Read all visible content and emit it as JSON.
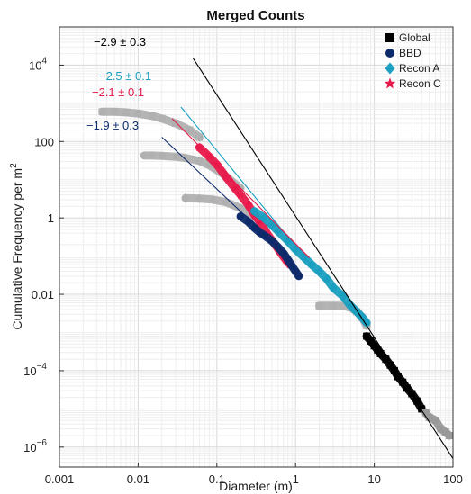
{
  "chart_data": {
    "type": "scatter",
    "title": "Merged Counts",
    "xlabel": "Diameter (m)",
    "ylabel": "Cumulative Frequency per m",
    "ylabel_sup": "2",
    "xscale": "log",
    "yscale": "log",
    "xlim": [
      0.001,
      100
    ],
    "ylim": [
      3e-07,
      100000
    ],
    "grid": true,
    "legend_position": "top-right",
    "x_ticks": [
      {
        "value": 0.001,
        "label": "0.001"
      },
      {
        "value": 0.01,
        "label": "0.01"
      },
      {
        "value": 0.1,
        "label": "0.1"
      },
      {
        "value": 1,
        "label": "1"
      },
      {
        "value": 10,
        "label": "10"
      },
      {
        "value": 100,
        "label": "100"
      }
    ],
    "y_ticks": [
      {
        "value": 1e-06,
        "base": "10",
        "exp": "−6"
      },
      {
        "value": 0.0001,
        "base": "10",
        "exp": "−4"
      },
      {
        "value": 0.01,
        "base": "0.01",
        "exp": ""
      },
      {
        "value": 1,
        "base": "1",
        "exp": ""
      },
      {
        "value": 100,
        "base": "100",
        "exp": ""
      },
      {
        "value": 10000,
        "base": "10",
        "exp": "4"
      }
    ],
    "legend": [
      {
        "name": "Global",
        "marker": "square",
        "color": "#000000"
      },
      {
        "name": "BBD",
        "marker": "circle",
        "color": "#0d2a6b"
      },
      {
        "name": "Recon A",
        "marker": "diamond",
        "color": "#1a9fc0"
      },
      {
        "name": "Recon C",
        "marker": "star",
        "color": "#e8194a"
      }
    ],
    "fits": [
      {
        "label": "−2.9 ± 0.3",
        "color": "#000000",
        "x": [
          0.05,
          100
        ],
        "y": [
          15000,
          5e-07
        ]
      },
      {
        "label": "−2.5 ± 0.1",
        "color": "#1a9fc0",
        "x": [
          0.035,
          2
        ],
        "y": [
          800,
          0.032
        ]
      },
      {
        "label": "−2.1 ± 0.1",
        "color": "#e8194a",
        "x": [
          0.027,
          1.5
        ],
        "y": [
          400,
          0.09
        ]
      },
      {
        "label": "−1.9 ± 0.3",
        "color": "#0d2a6b",
        "x": [
          0.02,
          0.8
        ],
        "y": [
          130,
          0.1
        ]
      }
    ],
    "series": [
      {
        "name": "Global (gray)",
        "color": "#b0b0b0",
        "marker": "square",
        "x": [
          0.0035,
          0.005,
          0.007,
          0.01,
          0.015,
          0.02,
          0.03,
          0.045,
          0.06
        ],
        "y": [
          600,
          600,
          580,
          540,
          470,
          400,
          300,
          200,
          130
        ]
      },
      {
        "name": "BBD (gray)",
        "color": "#b0b0b0",
        "marker": "circle",
        "x": [
          0.012,
          0.015,
          0.02,
          0.03,
          0.04,
          0.06,
          0.08,
          0.12,
          0.2
        ],
        "y": [
          43,
          43,
          42,
          40,
          37,
          31,
          24,
          14,
          6
        ]
      },
      {
        "name": "Recon A (gray)",
        "color": "#b0b0b0",
        "marker": "diamond",
        "x": [
          0.04,
          0.06,
          0.09,
          0.13,
          0.2,
          0.3
        ],
        "y": [
          3.3,
          3.2,
          3.0,
          2.6,
          1.8,
          1.1
        ]
      },
      {
        "name": "Global (gray) mid",
        "color": "#b0b0b0",
        "marker": "square",
        "x": [
          2,
          3,
          4,
          5,
          6,
          7,
          8
        ],
        "y": [
          0.005,
          0.005,
          0.005,
          0.0045,
          0.0035,
          0.0025,
          0.0015
        ]
      },
      {
        "name": "Recon C",
        "color": "#e8194a",
        "marker": "star",
        "x": [
          0.06,
          0.08,
          0.1,
          0.13,
          0.17,
          0.2,
          0.25,
          0.3,
          0.35,
          0.45,
          0.55,
          0.65,
          0.75,
          0.85
        ],
        "y": [
          70,
          40,
          25,
          12,
          6,
          4,
          2.2,
          1.2,
          0.8,
          0.35,
          0.2,
          0.12,
          0.08,
          0.06
        ]
      },
      {
        "name": "BBD",
        "color": "#0d2a6b",
        "marker": "circle",
        "x": [
          0.2,
          0.25,
          0.3,
          0.35,
          0.4,
          0.5,
          0.6,
          0.7,
          0.8,
          0.9,
          1,
          1.1
        ],
        "y": [
          1.1,
          0.8,
          0.55,
          0.42,
          0.35,
          0.25,
          0.17,
          0.12,
          0.08,
          0.055,
          0.04,
          0.03
        ]
      },
      {
        "name": "Recon A",
        "color": "#1a9fc0",
        "marker": "diamond",
        "x": [
          0.3,
          0.4,
          0.5,
          0.6,
          0.8,
          1,
          1.3,
          1.6,
          2,
          2.5,
          3,
          4,
          5,
          6,
          7,
          8
        ],
        "y": [
          1.5,
          1,
          0.65,
          0.45,
          0.25,
          0.15,
          0.09,
          0.06,
          0.04,
          0.025,
          0.015,
          0.009,
          0.005,
          0.0035,
          0.0025,
          0.0018
        ]
      },
      {
        "name": "Global",
        "color": "#000000",
        "marker": "square",
        "x": [
          8,
          9,
          10,
          11,
          12,
          14,
          16,
          18,
          20,
          23,
          26,
          30,
          35,
          40
        ],
        "y": [
          0.0008,
          0.0006,
          0.00045,
          0.00035,
          0.00028,
          0.0002,
          0.00014,
          0.0001,
          7e-05,
          5e-05,
          3.5e-05,
          2.5e-05,
          1.6e-05,
          1e-05
        ]
      },
      {
        "name": "Global tail (gray)",
        "color": "#999999",
        "marker": "square",
        "x": [
          45,
          50,
          60,
          70,
          80,
          90
        ],
        "y": [
          8e-06,
          6e-06,
          5e-06,
          3e-06,
          2.5e-06,
          2e-06
        ]
      }
    ]
  }
}
